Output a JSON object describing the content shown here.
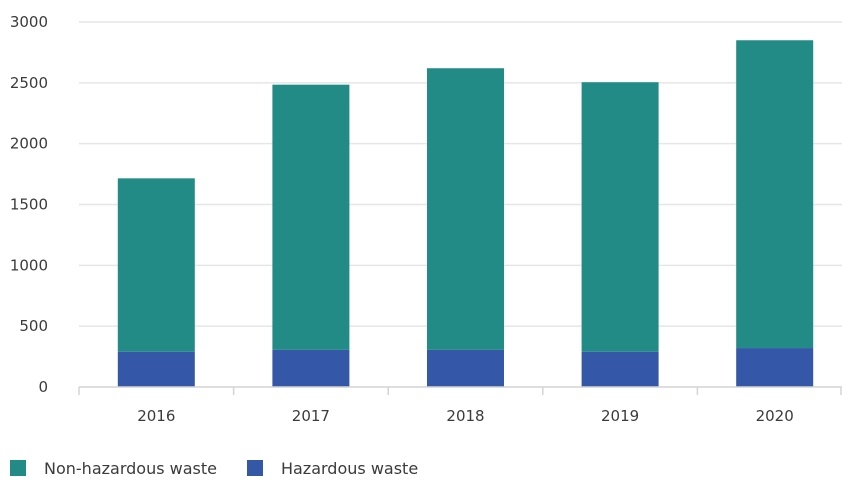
{
  "chart_data": {
    "type": "bar",
    "stacked": true,
    "categories": [
      "2016",
      "2017",
      "2018",
      "2019",
      "2020"
    ],
    "series": [
      {
        "name": "Hazardous waste",
        "color": "#3457a8",
        "values": [
          290,
          305,
          305,
          290,
          320
        ]
      },
      {
        "name": "Non-hazardous waste",
        "color": "#228b86",
        "values": [
          1425,
          2180,
          2315,
          2215,
          2530
        ]
      }
    ],
    "legend_order": [
      "Non-hazardous waste",
      "Hazardous waste"
    ],
    "y_ticks": [
      "0",
      "500",
      "1000",
      "1500",
      "2000",
      "2500",
      "3000"
    ],
    "ylim": [
      0,
      3000
    ],
    "title": "",
    "xlabel": "",
    "ylabel": "",
    "grid": true,
    "legend_position": "bottom-left"
  }
}
